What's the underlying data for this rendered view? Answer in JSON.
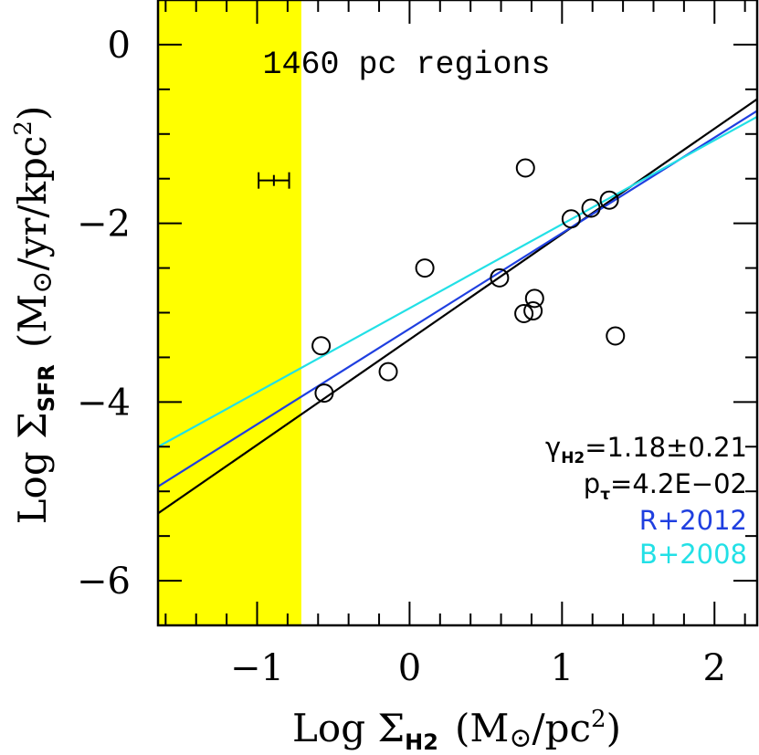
{
  "chart_data": {
    "type": "scatter",
    "title": "1460 pc regions",
    "xlabel": {
      "prefix": "Log Σ",
      "subscript": "H2",
      "units": "(M",
      "units_tail": "/pc",
      "units_sup": "2",
      "units_close": ")"
    },
    "ylabel": {
      "prefix": "Log Σ",
      "subscript": "SFR",
      "units": "(M",
      "units_tail": "/yr/kpc",
      "units_sup": "2",
      "units_close": ")"
    },
    "xlim": [
      -1.65,
      2.28
    ],
    "ylim": [
      -6.5,
      0.5
    ],
    "x_ticks": [
      {
        "value": -1,
        "label": "−1"
      },
      {
        "value": 0,
        "label": "0"
      },
      {
        "value": 1,
        "label": "1"
      },
      {
        "value": 2,
        "label": "2"
      }
    ],
    "y_ticks": [
      {
        "value": 0,
        "label": "0"
      },
      {
        "value": -2,
        "label": "−2"
      },
      {
        "value": -4,
        "label": "−4"
      },
      {
        "value": -6,
        "label": "−6"
      }
    ],
    "x_minor_step": 0.2,
    "y_minor_step": 0.5,
    "shaded_region": {
      "x_from": -1.65,
      "x_to": -0.71,
      "color": "#ffff00"
    },
    "points": [
      {
        "x": -0.58,
        "y": -3.37
      },
      {
        "x": -0.56,
        "y": -3.9
      },
      {
        "x": -0.14,
        "y": -3.66
      },
      {
        "x": 0.1,
        "y": -2.5
      },
      {
        "x": 0.59,
        "y": -2.61
      },
      {
        "x": 0.75,
        "y": -3.01
      },
      {
        "x": 0.76,
        "y": -1.38
      },
      {
        "x": 0.81,
        "y": -2.98
      },
      {
        "x": 0.82,
        "y": -2.84
      },
      {
        "x": 1.06,
        "y": -1.95
      },
      {
        "x": 1.19,
        "y": -1.83
      },
      {
        "x": 1.31,
        "y": -1.74
      },
      {
        "x": 1.35,
        "y": -3.26
      }
    ],
    "error_bar": {
      "x": -0.89,
      "y": -1.52,
      "xerr": 0.1
    },
    "fit_lines": [
      {
        "name": "fit",
        "color": "#000000",
        "slope": 1.18,
        "intercept": -3.3
      },
      {
        "name": "R+2012",
        "color": "#1f3fe0",
        "slope": 1.07,
        "intercept": -3.18
      },
      {
        "name": "B+2008",
        "color": "#22e0e6",
        "slope": 0.94,
        "intercept": -2.95
      }
    ],
    "annotations": {
      "gamma_symbol": "γ",
      "gamma_sub": "H2",
      "gamma_value": "=1.18±0.21",
      "p_symbol": "p",
      "p_sub": "τ",
      "p_value": "=4.2E−02",
      "legend_r": "R+2012",
      "legend_b": "B+2008"
    },
    "colors": {
      "axes": "#000000",
      "points": "#000000",
      "legend_r": "#1f3fe0",
      "legend_b": "#22e0e6"
    }
  }
}
